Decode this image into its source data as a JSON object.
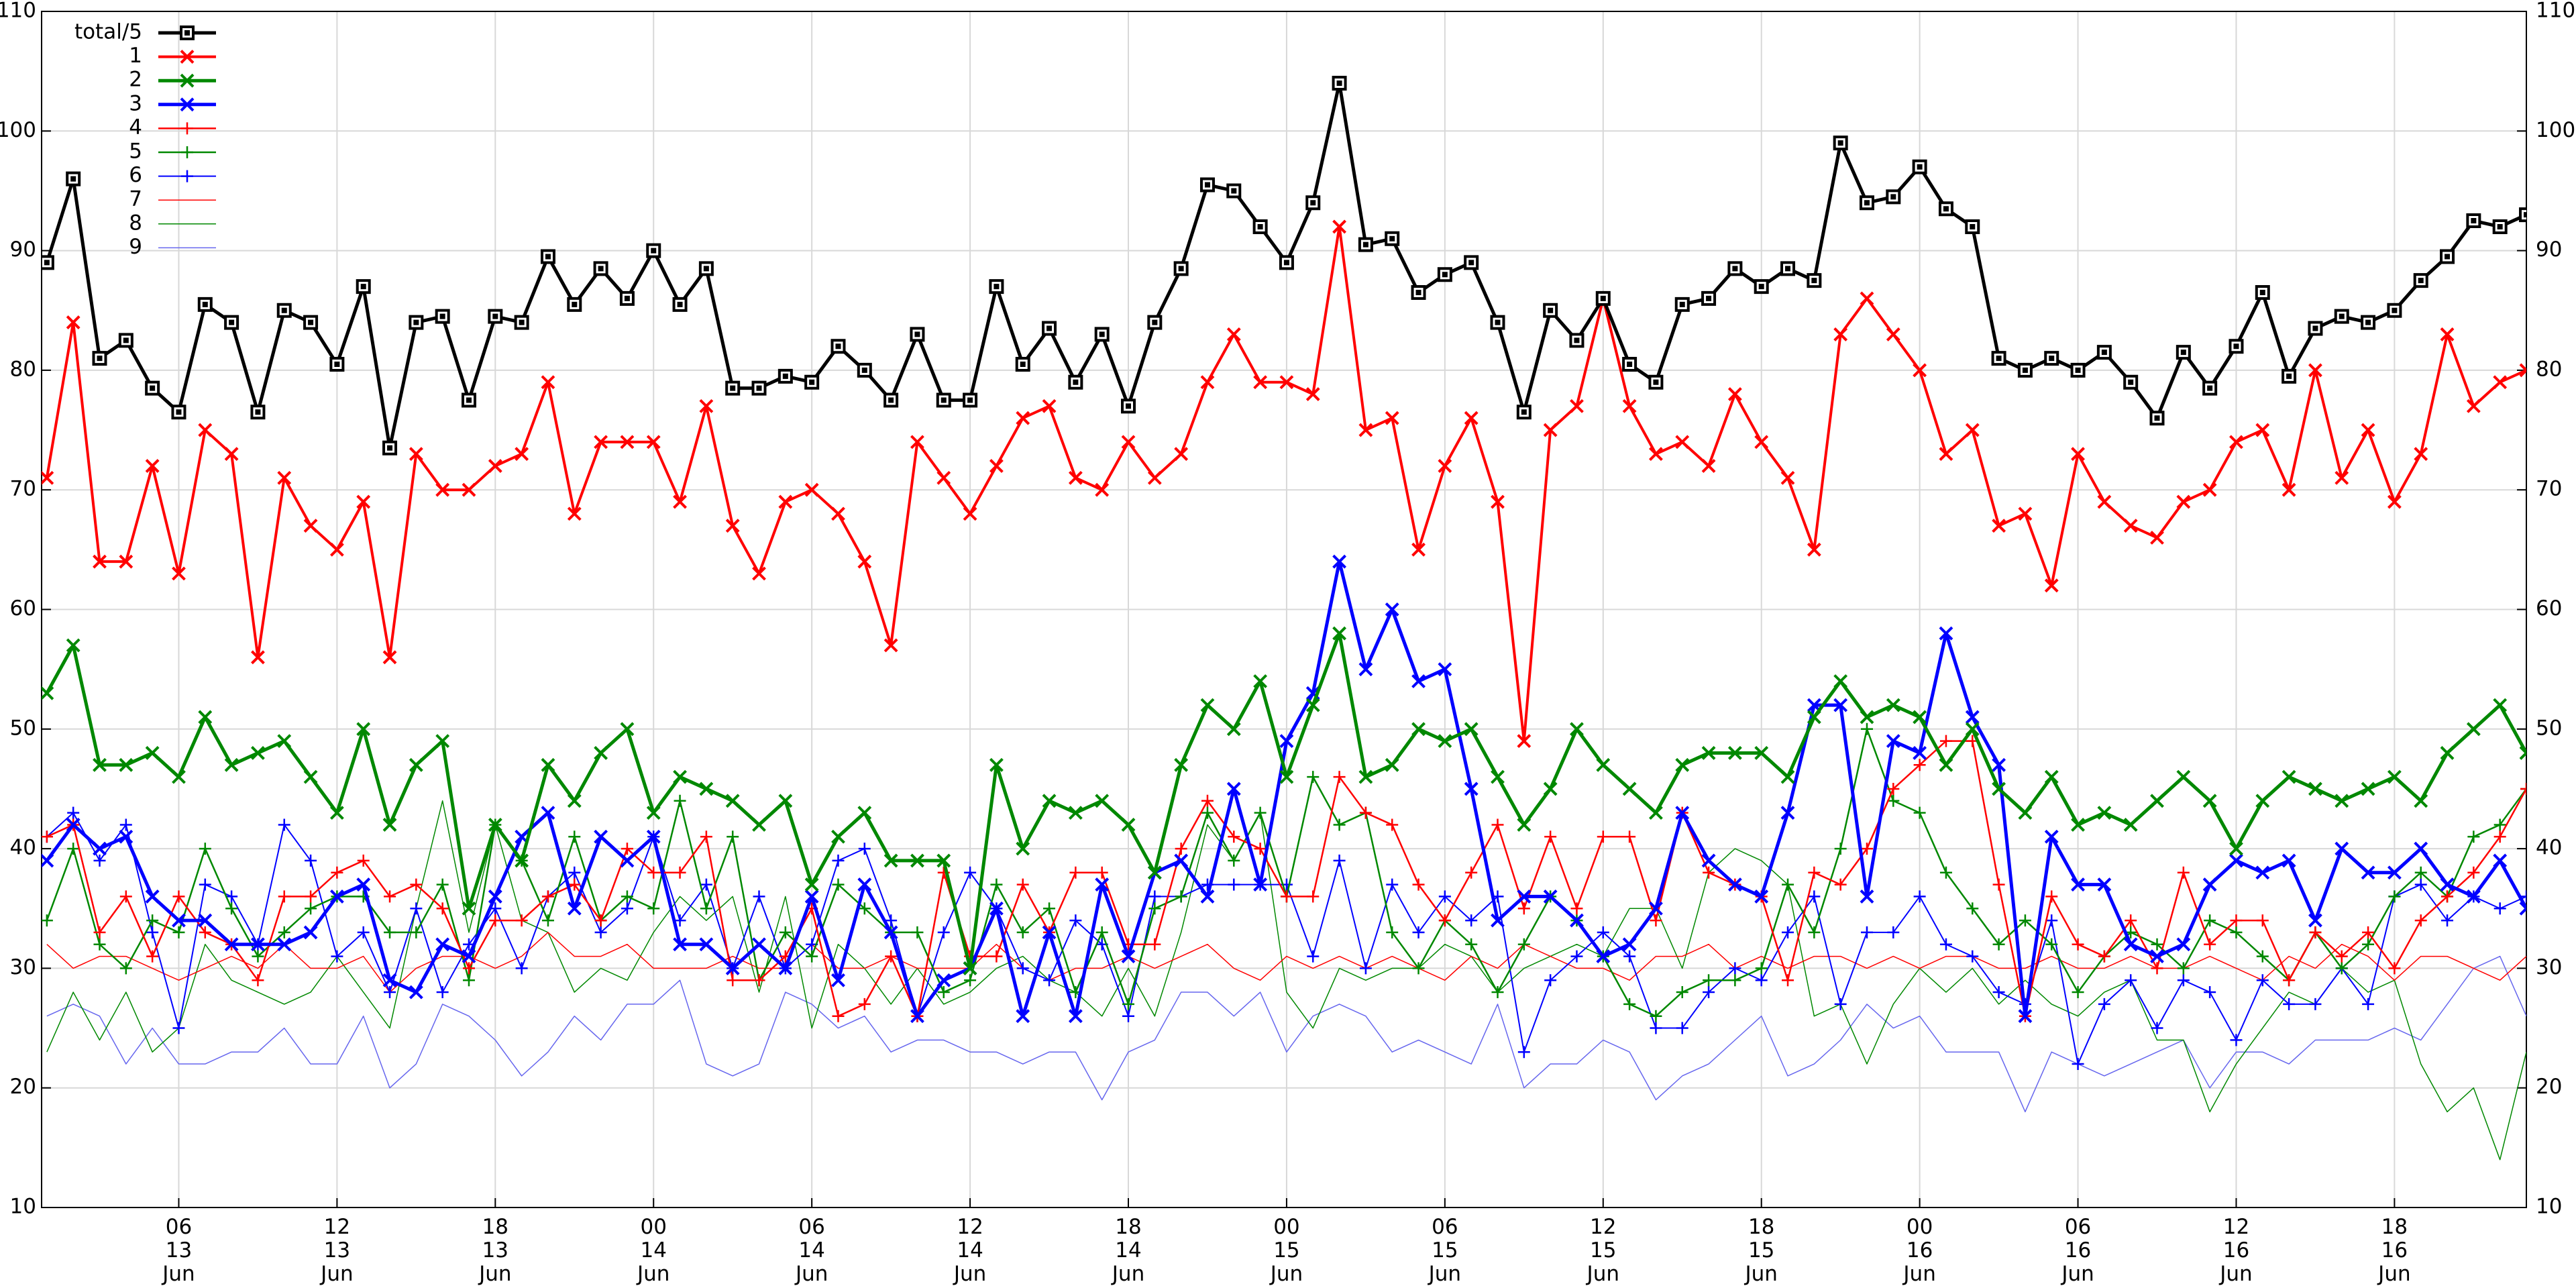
{
  "chart_data": {
    "type": "line",
    "grid": true,
    "legend": "top-left",
    "x": [
      1,
      2,
      3,
      4,
      5,
      6,
      7,
      8,
      9,
      10,
      11,
      12,
      13,
      14,
      15,
      16,
      17,
      18,
      19,
      20,
      21,
      22,
      23,
      24,
      25,
      26,
      27,
      28,
      29,
      30,
      31,
      32,
      33,
      34,
      35,
      36,
      37,
      38,
      39,
      40,
      41,
      42,
      43,
      44,
      45,
      46,
      47,
      48,
      49,
      50,
      51,
      52,
      53,
      54,
      55,
      56,
      57,
      58,
      59,
      60,
      61,
      62,
      63,
      64,
      65,
      66,
      67,
      68,
      69,
      70,
      71,
      72,
      73,
      74,
      75,
      76,
      77,
      78,
      79,
      80,
      81,
      82,
      83,
      84,
      85,
      86,
      87,
      88,
      89,
      90,
      91,
      92,
      93,
      94,
      95
    ],
    "xlim": [
      0.8,
      95
    ],
    "xticks": [
      {
        "value": 6,
        "label": "06\n13\nJun"
      },
      {
        "value": 12,
        "label": "12\n13\nJun"
      },
      {
        "value": 18,
        "label": "18\n13\nJun"
      },
      {
        "value": 24,
        "label": "00\n14\nJun"
      },
      {
        "value": 30,
        "label": "06\n14\nJun"
      },
      {
        "value": 36,
        "label": "12\n14\nJun"
      },
      {
        "value": 42,
        "label": "18\n14\nJun"
      },
      {
        "value": 48,
        "label": "00\n15\nJun"
      },
      {
        "value": 54,
        "label": "06\n15\nJun"
      },
      {
        "value": 60,
        "label": "12\n15\nJun"
      },
      {
        "value": 66,
        "label": "18\n15\nJun"
      },
      {
        "value": 72,
        "label": "00\n16\nJun"
      },
      {
        "value": 78,
        "label": "06\n16\nJun"
      },
      {
        "value": 84,
        "label": "12\n16\nJun"
      },
      {
        "value": 90,
        "label": "18\n16\nJun"
      }
    ],
    "ylim": [
      10,
      110
    ],
    "yticks": [
      10,
      20,
      30,
      40,
      50,
      60,
      70,
      80,
      90,
      100,
      110
    ],
    "y2lim": [
      10,
      110
    ],
    "y2ticks": [
      10,
      20,
      30,
      40,
      50,
      60,
      70,
      80,
      90,
      100,
      110
    ],
    "series": [
      {
        "name": "total/5",
        "color": "#000000",
        "marker": "square",
        "lw": 5,
        "values": [
          89,
          96,
          81,
          82.5,
          78.5,
          76.5,
          85.5,
          84,
          76.5,
          85,
          84,
          80.5,
          87,
          73.5,
          84,
          84.5,
          77.5,
          84.5,
          84,
          89.5,
          85.5,
          88.5,
          86,
          90,
          85.5,
          88.5,
          78.5,
          78.5,
          79.5,
          79,
          82,
          80,
          77.5,
          83,
          77.5,
          77.5,
          87,
          80.5,
          83.5,
          79,
          83,
          77,
          84,
          88.5,
          95.5,
          95,
          92,
          89,
          94,
          104,
          90.5,
          91,
          86.5,
          88,
          89,
          84,
          76.5,
          85,
          82.5,
          86,
          80.5,
          79,
          85.5,
          86,
          88.5,
          87,
          88.5,
          87.5,
          99,
          94,
          94.5,
          97,
          93.5,
          92,
          81,
          80,
          81,
          80,
          81.5,
          79,
          76,
          81.5,
          78.5,
          82,
          86.5,
          79.5,
          83.5,
          84.5,
          84,
          85,
          87.5,
          89.5,
          92.5,
          92,
          93
        ]
      },
      {
        "name": "1",
        "color": "#ff0000",
        "marker": "x",
        "lw": 4,
        "values": [
          71,
          84,
          64,
          64,
          72,
          63,
          75,
          73,
          56,
          71,
          67,
          65,
          69,
          56,
          73,
          70,
          70,
          72,
          73,
          79,
          68,
          74,
          74,
          74,
          69,
          77,
          67,
          63,
          69,
          70,
          68,
          64,
          57,
          74,
          71,
          68,
          72,
          76,
          77,
          71,
          70,
          74,
          71,
          73,
          79,
          83,
          79,
          79,
          78,
          92,
          75,
          76,
          65,
          72,
          76,
          69,
          49,
          75,
          77,
          86,
          77,
          73,
          74,
          72,
          78,
          74,
          71,
          65,
          83,
          86,
          83,
          80,
          73,
          75,
          67,
          68,
          62,
          73,
          69,
          67,
          66,
          69,
          70,
          74,
          75,
          70,
          80,
          71,
          75,
          69,
          73,
          83,
          77,
          79,
          80
        ]
      },
      {
        "name": "2",
        "color": "#008800",
        "marker": "x",
        "lw": 5,
        "values": [
          53,
          57,
          47,
          47,
          48,
          46,
          51,
          47,
          48,
          49,
          46,
          43,
          50,
          42,
          47,
          49,
          35,
          42,
          39,
          47,
          44,
          48,
          50,
          43,
          46,
          45,
          44,
          42,
          44,
          37,
          41,
          43,
          39,
          39,
          39,
          30,
          47,
          40,
          44,
          43,
          44,
          42,
          38,
          47,
          52,
          50,
          54,
          46,
          52,
          58,
          46,
          47,
          50,
          49,
          50,
          46,
          42,
          45,
          50,
          47,
          45,
          43,
          47,
          48,
          48,
          48,
          46,
          51,
          54,
          51,
          52,
          51,
          47,
          50,
          45,
          43,
          46,
          42,
          43,
          42,
          44,
          46,
          44,
          40,
          44,
          46,
          45,
          44,
          45,
          46,
          44,
          48,
          50,
          52,
          48
        ]
      },
      {
        "name": "3",
        "color": "#0000ff",
        "marker": "x",
        "lw": 5,
        "values": [
          39,
          42,
          40,
          41,
          36,
          34,
          34,
          32,
          32,
          32,
          33,
          36,
          37,
          29,
          28,
          32,
          31,
          36,
          41,
          43,
          35,
          41,
          39,
          41,
          32,
          32,
          30,
          32,
          30,
          36,
          29,
          37,
          33,
          26,
          29,
          30,
          35,
          26,
          33,
          26,
          37,
          31,
          38,
          39,
          36,
          45,
          37,
          49,
          53,
          64,
          55,
          60,
          54,
          55,
          45,
          34,
          36,
          36,
          34,
          31,
          32,
          35,
          43,
          39,
          37,
          36,
          43,
          52,
          52,
          36,
          49,
          48,
          58,
          51,
          47,
          26,
          41,
          37,
          37,
          32,
          31,
          32,
          37,
          39,
          38,
          39,
          34,
          40,
          38,
          38,
          40,
          37,
          36,
          39,
          35
        ]
      },
      {
        "name": "4",
        "color": "#ff0000",
        "marker": "plus",
        "lw": 2.5,
        "values": [
          41,
          42,
          33,
          36,
          31,
          36,
          33,
          32,
          29,
          36,
          36,
          38,
          39,
          36,
          37,
          35,
          30,
          34,
          34,
          36,
          37,
          34,
          40,
          38,
          38,
          41,
          29,
          29,
          31,
          35,
          26,
          27,
          31,
          26,
          38,
          31,
          31,
          37,
          33,
          38,
          38,
          32,
          32,
          40,
          44,
          41,
          40,
          36,
          36,
          46,
          43,
          42,
          37,
          34,
          38,
          42,
          35,
          41,
          35,
          41,
          41,
          34,
          43,
          38,
          37,
          36,
          29,
          38,
          37,
          40,
          45,
          47,
          49,
          49,
          37,
          26,
          36,
          32,
          31,
          34,
          30,
          38,
          32,
          34,
          34,
          29,
          33,
          31,
          33,
          30,
          34,
          36,
          38,
          41,
          45
        ]
      },
      {
        "name": "5",
        "color": "#008800",
        "marker": "plus",
        "lw": 2.5,
        "values": [
          34,
          40,
          32,
          30,
          34,
          33,
          40,
          35,
          31,
          33,
          35,
          36,
          36,
          33,
          33,
          37,
          29,
          42,
          39,
          34,
          41,
          34,
          36,
          35,
          44,
          35,
          41,
          29,
          33,
          31,
          37,
          35,
          33,
          33,
          28,
          29,
          37,
          33,
          35,
          28,
          33,
          27,
          35,
          36,
          43,
          39,
          43,
          36,
          46,
          42,
          43,
          33,
          30,
          34,
          32,
          28,
          32,
          36,
          34,
          31,
          27,
          26,
          28,
          29,
          29,
          30,
          37,
          33,
          40,
          50,
          44,
          43,
          38,
          35,
          32,
          34,
          32,
          28,
          31,
          33,
          32,
          30,
          34,
          33,
          31,
          29,
          33,
          30,
          32,
          36,
          38,
          36,
          41,
          42,
          45
        ]
      },
      {
        "name": "6",
        "color": "#0000ff",
        "marker": "plus",
        "lw": 2,
        "values": [
          41,
          43,
          39,
          42,
          33,
          25,
          37,
          36,
          32,
          42,
          39,
          31,
          33,
          28,
          35,
          28,
          32,
          35,
          30,
          36,
          38,
          33,
          35,
          41,
          34,
          37,
          30,
          36,
          30,
          32,
          39,
          40,
          34,
          26,
          33,
          38,
          35,
          30,
          29,
          34,
          32,
          26,
          36,
          36,
          37,
          37,
          37,
          37,
          31,
          39,
          30,
          37,
          33,
          36,
          34,
          36,
          23,
          29,
          31,
          33,
          31,
          25,
          25,
          28,
          30,
          29,
          33,
          36,
          27,
          33,
          33,
          36,
          32,
          31,
          28,
          27,
          34,
          22,
          27,
          29,
          25,
          29,
          28,
          24,
          29,
          27,
          27,
          30,
          27,
          36,
          37,
          34,
          36,
          35,
          36
        ]
      },
      {
        "name": "7",
        "color": "#ff0000",
        "marker": "none",
        "lw": 1.5,
        "values": [
          32,
          30,
          31,
          31,
          30,
          29,
          30,
          31,
          30,
          32,
          30,
          30,
          31,
          28,
          30,
          31,
          31,
          30,
          31,
          33,
          31,
          31,
          32,
          30,
          30,
          30,
          31,
          30,
          30,
          32,
          30,
          30,
          31,
          30,
          30,
          30,
          32,
          30,
          29,
          30,
          30,
          31,
          30,
          31,
          32,
          30,
          29,
          31,
          30,
          31,
          30,
          31,
          30,
          29,
          31,
          30,
          32,
          31,
          30,
          30,
          29,
          31,
          31,
          32,
          30,
          31,
          30,
          31,
          31,
          30,
          31,
          30,
          31,
          31,
          30,
          30,
          31,
          30,
          30,
          31,
          30,
          30,
          31,
          30,
          29,
          31,
          30,
          32,
          31,
          29,
          31,
          31,
          30,
          29,
          31
        ]
      },
      {
        "name": "8",
        "color": "#008800",
        "marker": "none",
        "lw": 1.5,
        "values": [
          23,
          28,
          24,
          28,
          23,
          25,
          32,
          29,
          28,
          27,
          28,
          31,
          28,
          25,
          35,
          44,
          33,
          42,
          34,
          33,
          28,
          30,
          29,
          33,
          36,
          34,
          36,
          28,
          36,
          25,
          32,
          30,
          27,
          30,
          27,
          28,
          30,
          31,
          29,
          28,
          26,
          30,
          26,
          33,
          42,
          39,
          43,
          28,
          25,
          30,
          29,
          30,
          30,
          32,
          31,
          28,
          30,
          31,
          32,
          31,
          35,
          35,
          30,
          38,
          40,
          39,
          37,
          26,
          27,
          22,
          27,
          30,
          28,
          30,
          27,
          29,
          27,
          26,
          28,
          29,
          24,
          24,
          18,
          22,
          25,
          28,
          27,
          30,
          28,
          29,
          22,
          18,
          20,
          14,
          23
        ]
      },
      {
        "name": "9",
        "color": "#6666ee",
        "marker": "none",
        "lw": 1.5,
        "values": [
          26,
          27,
          26,
          22,
          25,
          22,
          22,
          23,
          23,
          25,
          22,
          22,
          26,
          20,
          22,
          27,
          26,
          24,
          21,
          23,
          26,
          24,
          27,
          27,
          29,
          22,
          21,
          22,
          28,
          27,
          25,
          26,
          23,
          24,
          24,
          23,
          23,
          22,
          23,
          23,
          19,
          23,
          24,
          28,
          28,
          26,
          28,
          23,
          26,
          27,
          26,
          23,
          24,
          23,
          22,
          27,
          20,
          22,
          22,
          24,
          23,
          19,
          21,
          22,
          24,
          26,
          21,
          22,
          24,
          27,
          25,
          26,
          23,
          23,
          23,
          18,
          23,
          22,
          21,
          22,
          23,
          24,
          20,
          23,
          23,
          22,
          24,
          24,
          24,
          25,
          24,
          27,
          30,
          31,
          26
        ]
      }
    ]
  }
}
